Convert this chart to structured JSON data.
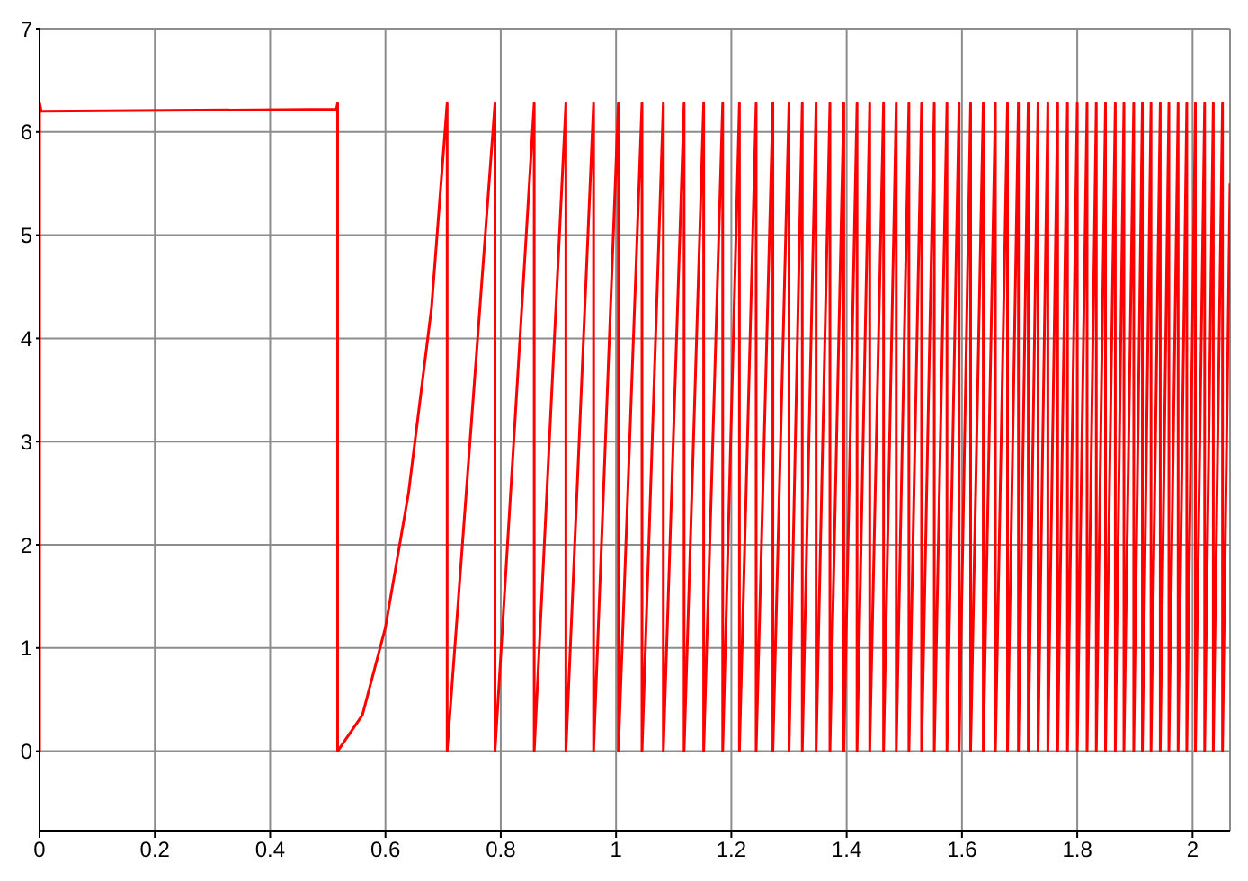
{
  "chart_data": {
    "type": "line",
    "xlim": [
      0,
      2.065
    ],
    "ylim": [
      -0.77,
      7
    ],
    "xticks": [
      0,
      0.2,
      0.4,
      0.6,
      0.8,
      1,
      1.2,
      1.4,
      1.6,
      1.8,
      2
    ],
    "yticks": [
      0,
      1,
      2,
      3,
      4,
      5,
      6,
      7
    ],
    "grid": true,
    "x": [
      0,
      0,
      0.003,
      0.515,
      0.517,
      0.517,
      0.56,
      0.6,
      0.64,
      0.68,
      0.707,
      0.707,
      0.79,
      0.79,
      0.858,
      0.858,
      0.913,
      0.913,
      0.961,
      0.961,
      1.004,
      1.004,
      1.045,
      1.045,
      1.082,
      1.082,
      1.118,
      1.118,
      1.152,
      1.152,
      1.185,
      1.185,
      1.214,
      1.214,
      1.243,
      1.243,
      1.272,
      1.272,
      1.3,
      1.3,
      1.323,
      1.323,
      1.347,
      1.347,
      1.371,
      1.371,
      1.395,
      1.395,
      1.418,
      1.418,
      1.44,
      1.44,
      1.464,
      1.464,
      1.486,
      1.486,
      1.508,
      1.508,
      1.53,
      1.53,
      1.552,
      1.552,
      1.574,
      1.574,
      1.595,
      1.595,
      1.615,
      1.615,
      1.637,
      1.637,
      1.658,
      1.658,
      1.679,
      1.679,
      1.698,
      1.698,
      1.715,
      1.715,
      1.732,
      1.732,
      1.749,
      1.749,
      1.766,
      1.766,
      1.783,
      1.783,
      1.8,
      1.8,
      1.817,
      1.817,
      1.833,
      1.833,
      1.849,
      1.849,
      1.866,
      1.866,
      1.881,
      1.881,
      1.898,
      1.898,
      1.913,
      1.913,
      1.928,
      1.928,
      1.944,
      1.944,
      1.959,
      1.959,
      1.975,
      1.975,
      1.99,
      1.99,
      2.005,
      2.005,
      2.021,
      2.021,
      2.036,
      2.036,
      2.052,
      2.052,
      2.065
    ],
    "series": [
      {
        "color": "#ff0000",
        "values": [
          0,
          6.28,
          6.2,
          6.22,
          6.28,
          0,
          0.35,
          1.2,
          2.5,
          4.3,
          6.28,
          0,
          6.28,
          0,
          6.28,
          0,
          6.28,
          0,
          6.28,
          0,
          6.28,
          0,
          6.28,
          0,
          6.28,
          0,
          6.28,
          0,
          6.28,
          0,
          6.28,
          0,
          6.28,
          0,
          6.28,
          0,
          6.28,
          0,
          6.28,
          0,
          6.28,
          0,
          6.28,
          0,
          6.28,
          0,
          6.28,
          0,
          6.28,
          0,
          6.28,
          0,
          6.28,
          0,
          6.28,
          0,
          6.28,
          0,
          6.28,
          0,
          6.28,
          0,
          6.28,
          0,
          6.28,
          0,
          6.28,
          0,
          6.28,
          0,
          6.28,
          0,
          6.28,
          0,
          6.28,
          0,
          6.28,
          0,
          6.28,
          0,
          6.28,
          0,
          6.28,
          0,
          6.28,
          0,
          6.28,
          0,
          6.28,
          0,
          6.28,
          0,
          6.28,
          0,
          6.28,
          0,
          6.28,
          0,
          6.28,
          0,
          6.28,
          0,
          6.28,
          0,
          6.28,
          0,
          6.28,
          0,
          6.28,
          0,
          6.28,
          0,
          6.28,
          0,
          6.28,
          0,
          6.28,
          0,
          6.28,
          0,
          5.5
        ]
      }
    ]
  }
}
